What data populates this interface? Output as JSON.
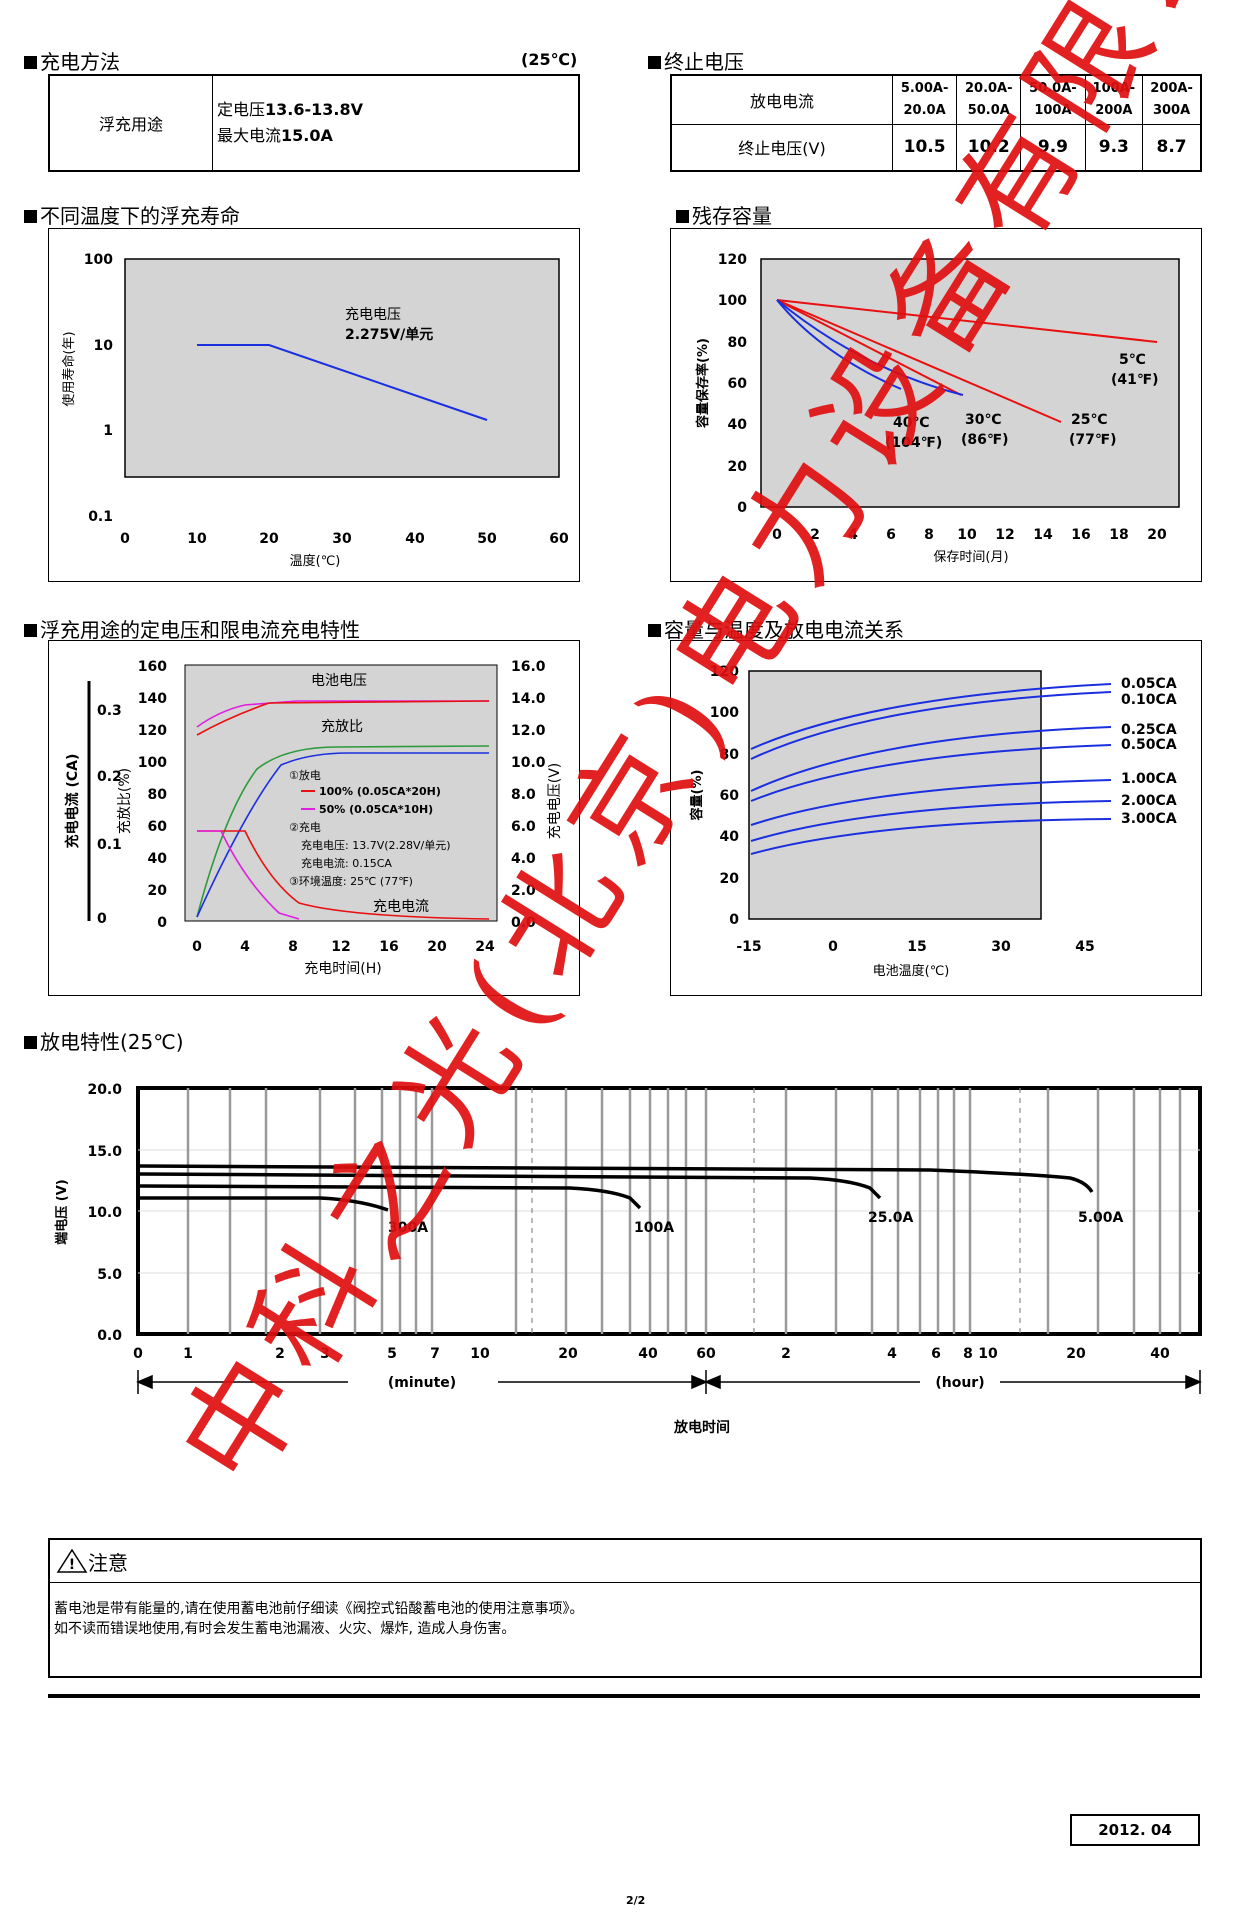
{
  "charge_method": {
    "title": "充电方法",
    "temp": "(25℃)",
    "row_label": "浮充用途",
    "line1_prefix": "定电压",
    "line1_value": "13.6-13.8V",
    "line2_prefix": "最大电流",
    "line2_value": "15.0A"
  },
  "cutoff_voltage": {
    "title": "终止电压",
    "row1_label": "放电电流",
    "row2_label": "终止电压(V)",
    "current_ranges": [
      [
        "5.00A-",
        "20.0A"
      ],
      [
        "20.0A-",
        "50.0A"
      ],
      [
        "50.0A-",
        "100A"
      ],
      [
        "100A-",
        "200A"
      ],
      [
        "200A-",
        "300A"
      ]
    ],
    "voltages": [
      "10.5",
      "10.2",
      "9.9",
      "9.3",
      "8.7"
    ]
  },
  "float_life": {
    "title": "不同温度下的浮充寿命",
    "annotation_line1": "充电电压",
    "annotation_line2": "2.275V/单元",
    "ylabel": "使用寿命(年)",
    "xlabel": "温度(℃)",
    "y_ticks": [
      "100",
      "10",
      "1",
      "0.1"
    ],
    "x_ticks": [
      "0",
      "10",
      "20",
      "30",
      "40",
      "50",
      "60"
    ]
  },
  "residual_capacity": {
    "title": "残存容量",
    "ylabel": "容量保存率(%)",
    "xlabel": "保存时间(月)",
    "y_ticks": [
      "120",
      "100",
      "80",
      "60",
      "40",
      "20",
      "0"
    ],
    "x_ticks": [
      "0",
      "2",
      "4",
      "6",
      "8",
      "10",
      "12",
      "14",
      "16",
      "18",
      "20"
    ],
    "labels": [
      {
        "l1": "5℃",
        "l2": "(41℉)"
      },
      {
        "l1": "25℃",
        "l2": "(77℉)"
      },
      {
        "l1": "30℃",
        "l2": "(86℉)"
      },
      {
        "l1": "40℃",
        "l2": "(104℉)"
      }
    ]
  },
  "float_charge": {
    "title": "浮充用途的定电压和限电流充电特性",
    "left_ticks_pct": [
      "160",
      "140",
      "120",
      "100",
      "80",
      "60",
      "40",
      "20",
      "0"
    ],
    "left_ticks_ca": [
      "0.3",
      "0.2",
      "0.1",
      "0"
    ],
    "right_ticks_v": [
      "16.0",
      "14.0",
      "12.0",
      "10.0",
      "8.0",
      "6.0",
      "4.0",
      "2.0",
      "0.0"
    ],
    "x_ticks": [
      "0",
      "4",
      "8",
      "12",
      "16",
      "20",
      "24"
    ],
    "ylabel_ca": "充电电流 (CA)",
    "ylabel_pct": "充放比(%)",
    "ylabel_v": "充电电压(V)",
    "xlabel": "充电时间(H)",
    "label_battery_voltage": "电池电压",
    "label_charge_ratio": "充放比",
    "label_charge_current": "充电电流",
    "legend_discharge": "①放电",
    "legend_100": "100% (0.05CA*20H)",
    "legend_50": "50% (0.05CA*10H)",
    "legend_charge": "②充电",
    "legend_voltage": "充电电压:  13.7V(2.28V/单元)",
    "legend_current": "充电电流:  0.15CA",
    "legend_temp": "③环境温度:  25℃ (77℉)"
  },
  "capacity_temp": {
    "title": "容量与温度及放电电流关系",
    "ylabel": "容量(%)",
    "xlabel": "电池温度(℃)",
    "y_ticks": [
      "120",
      "100",
      "80",
      "60",
      "40",
      "20",
      "0"
    ],
    "x_ticks": [
      "-15",
      "0",
      "15",
      "30",
      "45"
    ],
    "curve_labels": [
      "0.05CA",
      "0.10CA",
      "0.25CA",
      "0.50CA",
      "1.00CA",
      "2.00CA",
      "3.00CA"
    ]
  },
  "discharge": {
    "title": "放电特性(25℃)",
    "ylabel": "端电压 (V)",
    "xlabel": "放电时间",
    "y_ticks": [
      "20.0",
      "15.0",
      "10.0",
      "5.0",
      "0.0"
    ],
    "x_ticks_min": [
      "0",
      "1",
      "2",
      "3",
      "5",
      "7",
      "10",
      "20",
      "40",
      "60"
    ],
    "x_ticks_hour": [
      "2",
      "4",
      "6",
      "8",
      "10",
      "20",
      "40"
    ],
    "minute_label": "(minute)",
    "hour_label": "(hour)",
    "curve_labels": [
      "300A",
      "100A",
      "25.0A",
      "5.00A"
    ]
  },
  "caution": {
    "title": "注意",
    "line1": "蓄电池是带有能量的,请在使用蓄电池前仔细读《阀控式铅酸蓄电池的使用注意事项》。",
    "line2": "如不读而错误地使用,有时会发生蓄电池漏液、火灾、爆炸, 造成人身伤害。"
  },
  "footer": {
    "date": "2012. 04",
    "page": "2/2"
  },
  "watermark": "中科之光(北京)电力设备有限公司",
  "colors": {
    "chart_bg": "#d4d4d4",
    "blue": "#1a2fe0",
    "red": "#e81010",
    "green": "#2f9a3c",
    "magenta": "#e020e0",
    "watermark": "#e01010"
  }
}
